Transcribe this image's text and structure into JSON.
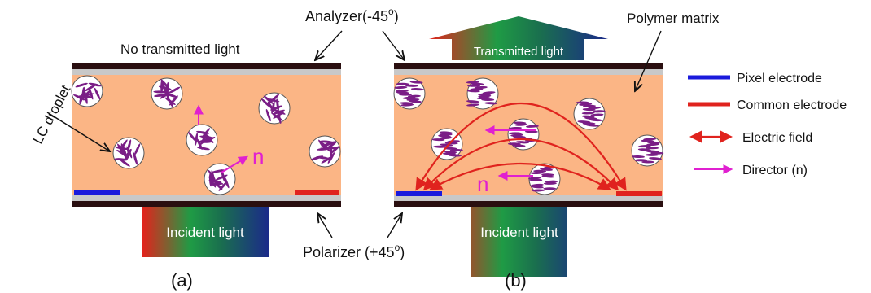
{
  "labels": {
    "analyzer": "Analyzer(-45",
    "analyzer_sup": "o",
    "analyzer_end": ")",
    "polarizer": "Polarizer (+45",
    "polarizer_sup": "o",
    "polarizer_end": ")",
    "no_transmitted": "No transmitted light",
    "transmitted": "Transmitted light",
    "incident_a": "Incident light",
    "incident_b": "Incident light",
    "polymer_matrix": "Polymer matrix",
    "lc_droplet": "LC droplet",
    "director_a": "n",
    "director_b": "n",
    "panel_a": "(a)",
    "panel_b": "(b)"
  },
  "legend": [
    {
      "label": "Pixel electrode",
      "color": "#1a1adc"
    },
    {
      "label": "Common electrode",
      "color": "#e0231e"
    },
    {
      "label": "Electric field",
      "color": "#e0231e"
    },
    {
      "label": "Director (n)",
      "color": "#e020d0"
    }
  ],
  "colors": {
    "matrix": "#fbb585",
    "plate": "#2a0f10",
    "spacer": "#c8c8c8",
    "droplet": "#7a1d86",
    "field": "#e0231e",
    "director": "#e020d0",
    "pixel": "#1a1adc",
    "common": "#e0231e"
  }
}
